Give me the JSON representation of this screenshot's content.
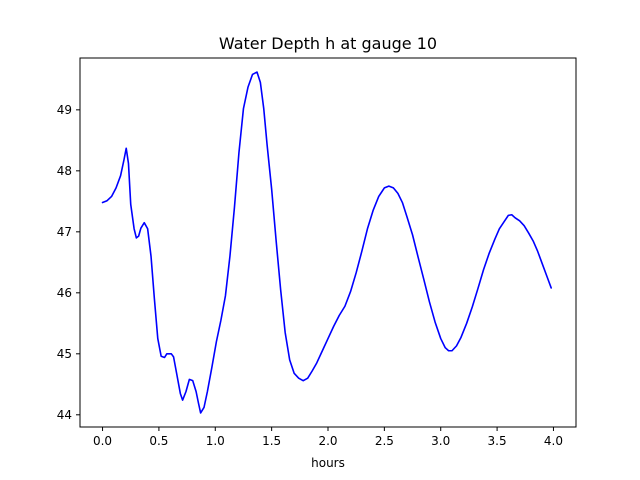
{
  "chart_data": {
    "type": "line",
    "title": "Water Depth h at gauge 10",
    "xlabel": "hours",
    "ylabel": "",
    "xlim": [
      -0.2,
      4.2
    ],
    "ylim": [
      43.8,
      49.85
    ],
    "x_ticks": [
      0.0,
      0.5,
      1.0,
      1.5,
      2.0,
      2.5,
      3.0,
      3.5,
      4.0
    ],
    "x_tick_labels": [
      "0.0",
      "0.5",
      "1.0",
      "1.5",
      "2.0",
      "2.5",
      "3.0",
      "3.5",
      "4.0"
    ],
    "y_ticks": [
      44,
      45,
      46,
      47,
      48,
      49
    ],
    "y_tick_labels": [
      "44",
      "45",
      "46",
      "47",
      "48",
      "49"
    ],
    "grid": false,
    "line_color": "#0000ff",
    "series": [
      {
        "values": [
          [
            0.0,
            47.48
          ],
          [
            0.04,
            47.51
          ],
          [
            0.08,
            47.58
          ],
          [
            0.12,
            47.72
          ],
          [
            0.16,
            47.92
          ],
          [
            0.19,
            48.18
          ],
          [
            0.21,
            48.37
          ],
          [
            0.23,
            48.12
          ],
          [
            0.25,
            47.45
          ],
          [
            0.28,
            47.05
          ],
          [
            0.3,
            46.9
          ],
          [
            0.32,
            46.93
          ],
          [
            0.34,
            47.06
          ],
          [
            0.37,
            47.15
          ],
          [
            0.4,
            47.05
          ],
          [
            0.43,
            46.6
          ],
          [
            0.46,
            45.9
          ],
          [
            0.49,
            45.25
          ],
          [
            0.52,
            44.96
          ],
          [
            0.55,
            44.94
          ],
          [
            0.57,
            45.0
          ],
          [
            0.61,
            45.0
          ],
          [
            0.63,
            44.95
          ],
          [
            0.66,
            44.65
          ],
          [
            0.69,
            44.35
          ],
          [
            0.71,
            44.24
          ],
          [
            0.74,
            44.38
          ],
          [
            0.77,
            44.58
          ],
          [
            0.8,
            44.56
          ],
          [
            0.83,
            44.38
          ],
          [
            0.85,
            44.2
          ],
          [
            0.87,
            44.03
          ],
          [
            0.9,
            44.12
          ],
          [
            0.93,
            44.38
          ],
          [
            0.97,
            44.78
          ],
          [
            1.01,
            45.2
          ],
          [
            1.05,
            45.55
          ],
          [
            1.09,
            45.95
          ],
          [
            1.13,
            46.6
          ],
          [
            1.17,
            47.4
          ],
          [
            1.21,
            48.3
          ],
          [
            1.25,
            49.02
          ],
          [
            1.29,
            49.37
          ],
          [
            1.33,
            49.58
          ],
          [
            1.37,
            49.62
          ],
          [
            1.4,
            49.45
          ],
          [
            1.43,
            49.02
          ],
          [
            1.46,
            48.42
          ],
          [
            1.5,
            47.7
          ],
          [
            1.54,
            46.85
          ],
          [
            1.58,
            46.05
          ],
          [
            1.62,
            45.35
          ],
          [
            1.66,
            44.9
          ],
          [
            1.7,
            44.68
          ],
          [
            1.74,
            44.6
          ],
          [
            1.78,
            44.56
          ],
          [
            1.82,
            44.6
          ],
          [
            1.86,
            44.72
          ],
          [
            1.9,
            44.85
          ],
          [
            1.95,
            45.05
          ],
          [
            2.0,
            45.25
          ],
          [
            2.05,
            45.45
          ],
          [
            2.1,
            45.63
          ],
          [
            2.15,
            45.78
          ],
          [
            2.2,
            46.02
          ],
          [
            2.25,
            46.33
          ],
          [
            2.3,
            46.68
          ],
          [
            2.35,
            47.05
          ],
          [
            2.4,
            47.35
          ],
          [
            2.45,
            47.58
          ],
          [
            2.5,
            47.72
          ],
          [
            2.54,
            47.75
          ],
          [
            2.58,
            47.72
          ],
          [
            2.62,
            47.63
          ],
          [
            2.66,
            47.48
          ],
          [
            2.7,
            47.25
          ],
          [
            2.75,
            46.95
          ],
          [
            2.8,
            46.58
          ],
          [
            2.85,
            46.22
          ],
          [
            2.9,
            45.85
          ],
          [
            2.95,
            45.52
          ],
          [
            3.0,
            45.25
          ],
          [
            3.04,
            45.1
          ],
          [
            3.07,
            45.05
          ],
          [
            3.1,
            45.05
          ],
          [
            3.14,
            45.13
          ],
          [
            3.18,
            45.27
          ],
          [
            3.23,
            45.5
          ],
          [
            3.28,
            45.77
          ],
          [
            3.33,
            46.07
          ],
          [
            3.38,
            46.38
          ],
          [
            3.43,
            46.65
          ],
          [
            3.48,
            46.88
          ],
          [
            3.52,
            47.05
          ],
          [
            3.56,
            47.16
          ],
          [
            3.6,
            47.27
          ],
          [
            3.63,
            47.28
          ],
          [
            3.66,
            47.23
          ],
          [
            3.7,
            47.18
          ],
          [
            3.74,
            47.1
          ],
          [
            3.78,
            46.98
          ],
          [
            3.82,
            46.85
          ],
          [
            3.86,
            46.68
          ],
          [
            3.9,
            46.48
          ],
          [
            3.94,
            46.28
          ],
          [
            3.98,
            46.08
          ]
        ]
      }
    ]
  }
}
